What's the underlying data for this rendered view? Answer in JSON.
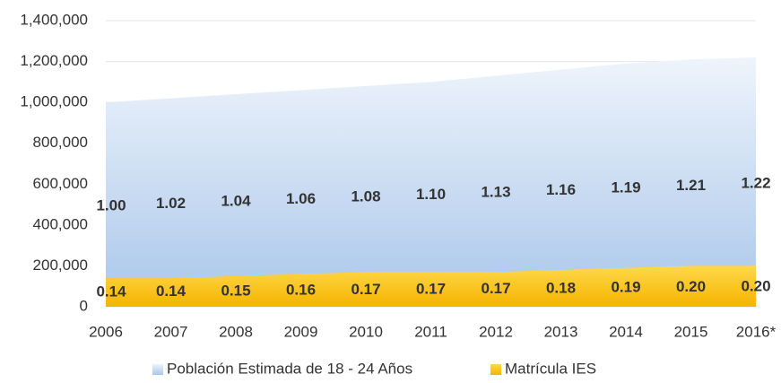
{
  "chart_data": {
    "type": "area",
    "categories": [
      "2006",
      "2007",
      "2008",
      "2009",
      "2010",
      "2011",
      "2012",
      "2013",
      "2014",
      "2015",
      "2016*"
    ],
    "series": [
      {
        "name": "Población Estimada de 18 - 24 Años",
        "color": "#a9c6ea",
        "values": [
          1000000,
          1020000,
          1040000,
          1060000,
          1080000,
          1100000,
          1130000,
          1160000,
          1190000,
          1210000,
          1220000
        ],
        "value_labels": [
          "1.00",
          "1.02",
          "1.04",
          "1.06",
          "1.08",
          "1.10",
          "1.13",
          "1.16",
          "1.19",
          "1.21",
          "1.22"
        ]
      },
      {
        "name": "Matrícula IES",
        "color": "#f7bd0a",
        "values": [
          140000,
          140000,
          150000,
          160000,
          170000,
          170000,
          170000,
          180000,
          190000,
          200000,
          200000
        ],
        "value_labels": [
          "0.14",
          "0.14",
          "0.15",
          "0.16",
          "0.17",
          "0.17",
          "0.17",
          "0.18",
          "0.19",
          "0.20",
          "0.20"
        ]
      }
    ],
    "ylim": [
      0,
      1400000
    ],
    "yticks": [
      0,
      {
        "value": 200000,
        "label": "200,000"
      },
      {
        "value": 400000,
        "label": "400,000"
      },
      {
        "value": 600000,
        "label": "600,000"
      },
      {
        "value": 800000,
        "label": "800,000"
      },
      {
        "value": 1000000,
        "label": "1,000,000"
      },
      {
        "value": 1200000,
        "label": "1,200,000"
      },
      {
        "value": 1400000,
        "label": "1,400,000"
      }
    ],
    "grid": true,
    "legend": "bottom"
  }
}
